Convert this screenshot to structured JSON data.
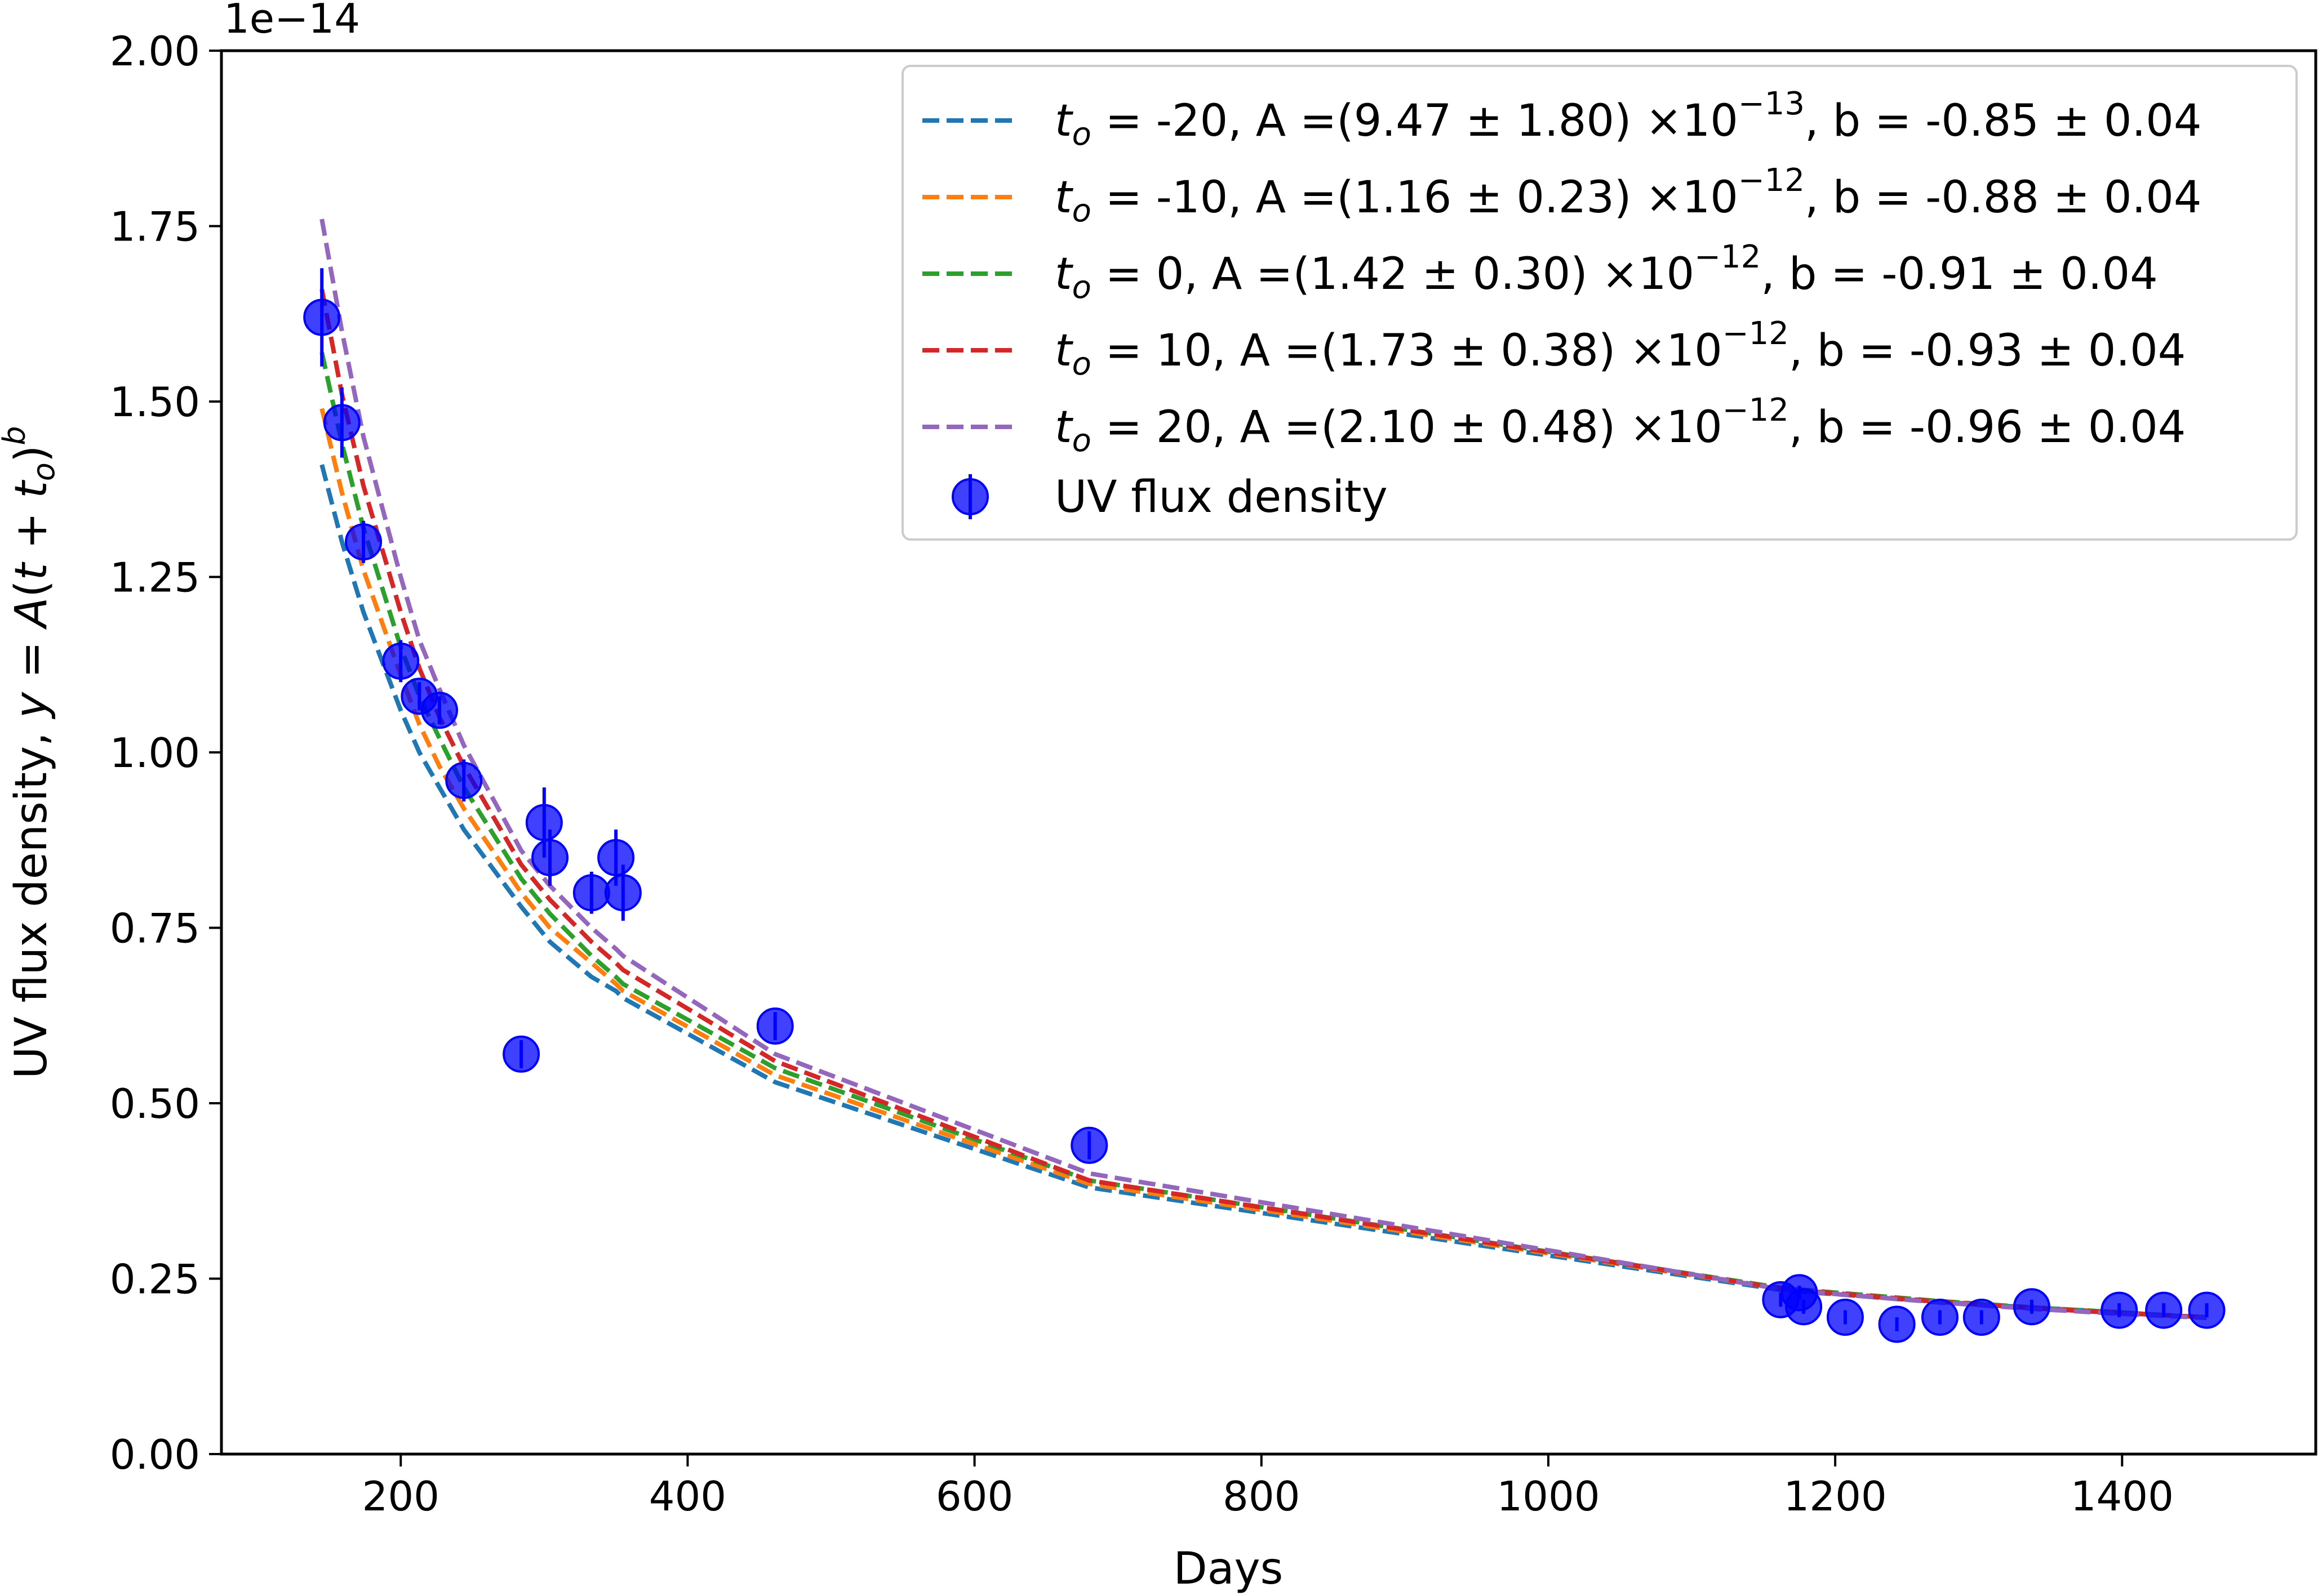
{
  "chart_data": {
    "type": "scatter",
    "xlabel": "Days",
    "ylabel": "UV flux density, y = A(t + t_o)^b",
    "offset_text": "1e−14",
    "xlim": [
      75,
      1535
    ],
    "ylim": [
      0.0,
      2.0
    ],
    "x_ticks": [
      200,
      400,
      600,
      800,
      1000,
      1200,
      1400
    ],
    "x_tick_labels": [
      "200",
      "400",
      "600",
      "800",
      "1000",
      "1200",
      "1400"
    ],
    "y_ticks": [
      0.0,
      0.25,
      0.5,
      0.75,
      1.0,
      1.25,
      1.5,
      1.75,
      2.0
    ],
    "y_tick_labels": [
      "0.00",
      "0.25",
      "0.50",
      "0.75",
      "1.00",
      "1.25",
      "1.50",
      "1.75",
      "2.00"
    ],
    "legend_position": "upper right",
    "series": [
      {
        "name": "t_o = -20, A =(9.47 ± 1.80) ×10^−13, b = -0.85 ± 0.04",
        "legend_segments": [
          [
            "t",
            "it"
          ],
          [
            "o",
            "it-sub"
          ],
          [
            " = -20, A =(9.47 ± 1.80) ×10",
            "n"
          ],
          [
            "−13",
            "sup"
          ],
          [
            ", b = -0.85 ± 0.04",
            "n"
          ]
        ],
        "style": "dashed",
        "color": "#1f77b4",
        "x": [
          145,
          159,
          174,
          200,
          213,
          227,
          244,
          284,
          300,
          304,
          333,
          350,
          355,
          461,
          680,
          1162,
          1175,
          1178,
          1207,
          1243,
          1273,
          1302,
          1337,
          1398,
          1429,
          1459
        ],
        "y": [
          1.41,
          1.3,
          1.2,
          1.06,
          1.0,
          0.95,
          0.89,
          0.78,
          0.74,
          0.73,
          0.68,
          0.66,
          0.65,
          0.53,
          0.38,
          0.234,
          0.232,
          0.231,
          0.227,
          0.221,
          0.217,
          0.213,
          0.209,
          0.202,
          0.198,
          0.195
        ]
      },
      {
        "name": "t_o = -10, A =(1.16 ± 0.23) ×10^−12, b = -0.88 ± 0.04",
        "legend_segments": [
          [
            "t",
            "it"
          ],
          [
            "o",
            "it-sub"
          ],
          [
            " = -10, A =(1.16 ± 0.23) ×10",
            "n"
          ],
          [
            "−12",
            "sup"
          ],
          [
            ", b = -0.88 ± 0.04",
            "n"
          ]
        ],
        "style": "dashed",
        "color": "#ff7f0e",
        "x": [
          145,
          159,
          174,
          200,
          213,
          227,
          244,
          284,
          300,
          304,
          333,
          350,
          355,
          461,
          680,
          1162,
          1175,
          1178,
          1207,
          1243,
          1273,
          1302,
          1337,
          1398,
          1429,
          1459
        ],
        "y": [
          1.49,
          1.37,
          1.26,
          1.11,
          1.04,
          0.98,
          0.92,
          0.8,
          0.76,
          0.75,
          0.7,
          0.67,
          0.66,
          0.54,
          0.385,
          0.236,
          0.234,
          0.233,
          0.228,
          0.222,
          0.218,
          0.214,
          0.209,
          0.202,
          0.198,
          0.195
        ]
      },
      {
        "name": "t_o = 0, A =(1.42 ± 0.30) ×10^−12, b = -0.91 ± 0.04",
        "legend_segments": [
          [
            "t",
            "it"
          ],
          [
            "o",
            "it-sub"
          ],
          [
            " = 0, A =(1.42 ± 0.30) ×10",
            "n"
          ],
          [
            "−12",
            "sup"
          ],
          [
            ", b = -0.91 ± 0.04",
            "n"
          ]
        ],
        "style": "dashed",
        "color": "#2ca02c",
        "x": [
          145,
          159,
          174,
          200,
          213,
          227,
          244,
          284,
          300,
          304,
          333,
          350,
          355,
          461,
          680,
          1162,
          1175,
          1178,
          1207,
          1243,
          1273,
          1302,
          1337,
          1398,
          1429,
          1459
        ],
        "y": [
          1.57,
          1.44,
          1.32,
          1.15,
          1.08,
          1.02,
          0.95,
          0.82,
          0.78,
          0.77,
          0.71,
          0.68,
          0.67,
          0.55,
          0.39,
          0.237,
          0.235,
          0.234,
          0.229,
          0.223,
          0.218,
          0.214,
          0.209,
          0.202,
          0.198,
          0.195
        ]
      },
      {
        "name": "t_o = 10, A =(1.73 ± 0.38) ×10^−12, b = -0.93 ± 0.04",
        "legend_segments": [
          [
            "t",
            "it"
          ],
          [
            "o",
            "it-sub"
          ],
          [
            " = 10, A =(1.73 ± 0.38) ×10",
            "n"
          ],
          [
            "−12",
            "sup"
          ],
          [
            ", b = -0.93 ± 0.04",
            "n"
          ]
        ],
        "style": "dashed",
        "color": "#d62728",
        "x": [
          145,
          159,
          174,
          200,
          213,
          227,
          244,
          284,
          300,
          304,
          333,
          350,
          355,
          461,
          680,
          1162,
          1175,
          1178,
          1207,
          1243,
          1273,
          1302,
          1337,
          1398,
          1429,
          1459
        ],
        "y": [
          1.66,
          1.51,
          1.38,
          1.2,
          1.12,
          1.05,
          0.98,
          0.84,
          0.8,
          0.79,
          0.73,
          0.7,
          0.69,
          0.56,
          0.39,
          0.236,
          0.234,
          0.233,
          0.228,
          0.222,
          0.217,
          0.213,
          0.208,
          0.201,
          0.198,
          0.195
        ]
      },
      {
        "name": "t_o = 20, A =(2.10 ± 0.48) ×10^−12, b = -0.96 ± 0.04",
        "legend_segments": [
          [
            "t",
            "it"
          ],
          [
            "o",
            "it-sub"
          ],
          [
            " = 20, A =(2.10 ± 0.48) ×10",
            "n"
          ],
          [
            "−12",
            "sup"
          ],
          [
            ", b = -0.96 ± 0.04",
            "n"
          ]
        ],
        "style": "dashed",
        "color": "#9467bd",
        "x": [
          145,
          159,
          174,
          200,
          213,
          227,
          244,
          284,
          300,
          304,
          333,
          350,
          355,
          461,
          680,
          1162,
          1175,
          1178,
          1207,
          1243,
          1273,
          1302,
          1337,
          1398,
          1429,
          1459
        ],
        "y": [
          1.76,
          1.6,
          1.45,
          1.25,
          1.16,
          1.09,
          1.01,
          0.86,
          0.82,
          0.81,
          0.75,
          0.72,
          0.71,
          0.57,
          0.4,
          0.235,
          0.233,
          0.232,
          0.227,
          0.221,
          0.216,
          0.212,
          0.207,
          0.2,
          0.197,
          0.194
        ]
      },
      {
        "name": "UV flux density",
        "style": "markers",
        "color": "#0000ff",
        "x": [
          145,
          159,
          174,
          200,
          213,
          227,
          244,
          284,
          300,
          304,
          333,
          350,
          355,
          461,
          680,
          1162,
          1175,
          1178,
          1207,
          1243,
          1273,
          1302,
          1337,
          1398,
          1429,
          1459
        ],
        "y": [
          1.62,
          1.47,
          1.3,
          1.13,
          1.08,
          1.06,
          0.96,
          0.57,
          0.9,
          0.85,
          0.8,
          0.85,
          0.8,
          0.61,
          0.44,
          0.22,
          0.23,
          0.21,
          0.195,
          0.185,
          0.195,
          0.195,
          0.21,
          0.205,
          0.205,
          0.205
        ],
        "yerr": [
          0.07,
          0.05,
          0.03,
          0.03,
          0.02,
          0.02,
          0.03,
          0.02,
          0.05,
          0.04,
          0.03,
          0.04,
          0.04,
          0.02,
          0.02,
          0.01,
          0.01,
          0.01,
          0.01,
          0.01,
          0.01,
          0.01,
          0.01,
          0.01,
          0.01,
          0.01
        ]
      }
    ]
  }
}
